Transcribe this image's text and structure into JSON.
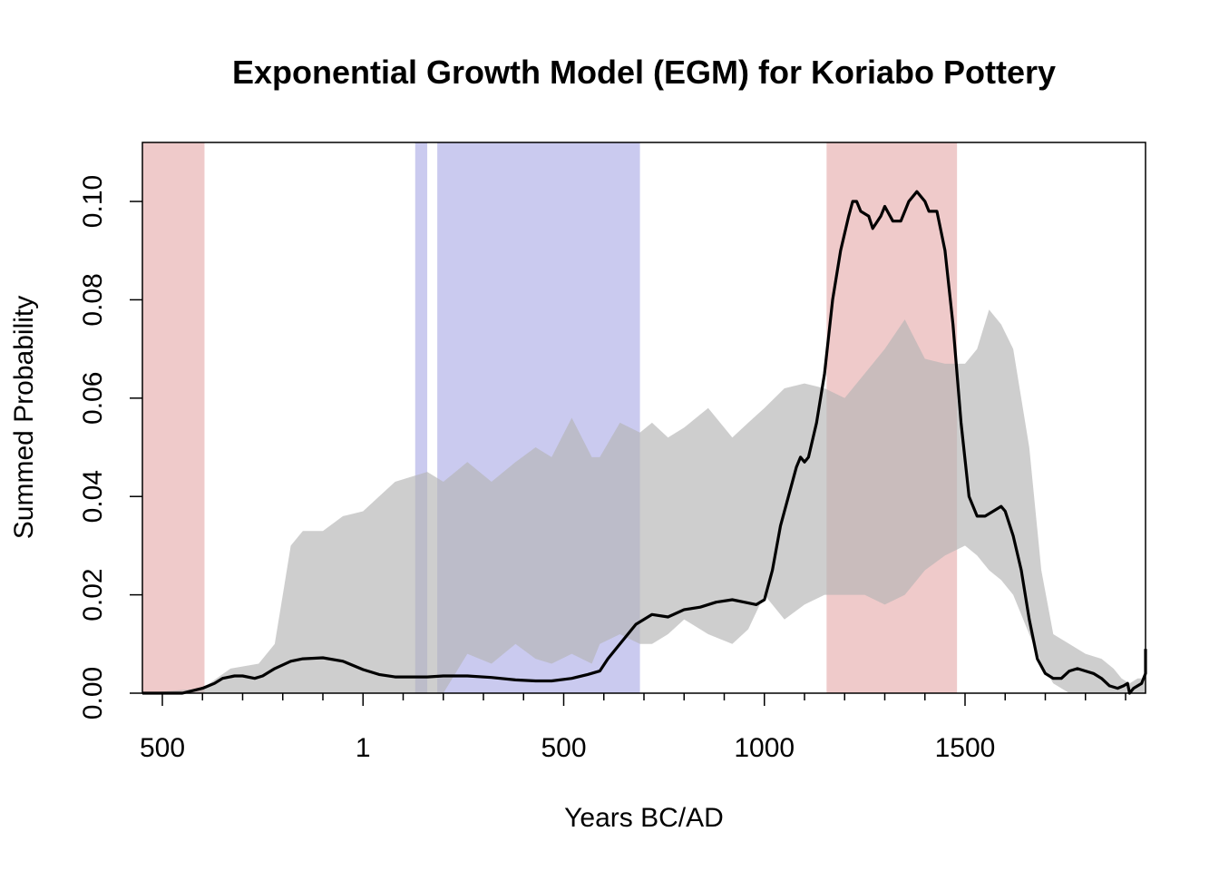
{
  "chart_data": {
    "type": "area",
    "title": "Exponential Growth Model (EGM) for Koriabo Pottery",
    "xlabel": "Years BC/AD",
    "ylabel": "Summed Probability",
    "xlim": [
      -1050,
      2000
    ],
    "ylim": [
      0,
      0.112
    ],
    "x_ticks": [
      {
        "value": -500,
        "label": "500"
      },
      {
        "value": 1,
        "label": "1"
      },
      {
        "value": 500,
        "label": "500"
      },
      {
        "value": 1000,
        "label": "1000"
      },
      {
        "value": 1500,
        "label": "1500"
      }
    ],
    "y_ticks": [
      {
        "value": 0.0,
        "label": "0.00"
      },
      {
        "value": 0.02,
        "label": "0.02"
      },
      {
        "value": 0.04,
        "label": "0.04"
      },
      {
        "value": 0.06,
        "label": "0.06"
      },
      {
        "value": 0.08,
        "label": "0.08"
      },
      {
        "value": 0.1,
        "label": "0.10"
      }
    ],
    "colors": {
      "envelope": "#b3b3b3",
      "spd_line": "#000000",
      "negative_deviation": "#e8b4b4",
      "positive_deviation": "#b4b4e8"
    },
    "shaded_regions": [
      {
        "type": "negative",
        "x0": -1050,
        "x1": -395
      },
      {
        "type": "positive",
        "x0": 130,
        "x1": 160
      },
      {
        "type": "positive",
        "x0": 185,
        "x1": 690
      },
      {
        "type": "negative",
        "x0": 1155,
        "x1": 1480
      }
    ],
    "envelope": {
      "x": [
        -1050,
        -400,
        -330,
        -260,
        -220,
        -200,
        -180,
        -150,
        -100,
        -50,
        0,
        40,
        80,
        120,
        160,
        200,
        260,
        320,
        380,
        430,
        470,
        520,
        570,
        590,
        640,
        690,
        720,
        760,
        800,
        860,
        920,
        960,
        1000,
        1050,
        1100,
        1150,
        1200,
        1250,
        1300,
        1350,
        1400,
        1450,
        1500,
        1530,
        1560,
        1590,
        1620,
        1660,
        1690,
        1720,
        1760,
        1800,
        1840,
        1870,
        1890,
        1910,
        1930,
        1950,
        1980,
        2000
      ],
      "upper": [
        0.0,
        0.001,
        0.005,
        0.006,
        0.01,
        0.02,
        0.03,
        0.033,
        0.033,
        0.036,
        0.037,
        0.04,
        0.043,
        0.044,
        0.045,
        0.043,
        0.047,
        0.043,
        0.047,
        0.05,
        0.048,
        0.056,
        0.048,
        0.048,
        0.055,
        0.053,
        0.055,
        0.052,
        0.054,
        0.058,
        0.052,
        0.055,
        0.058,
        0.062,
        0.063,
        0.062,
        0.06,
        0.065,
        0.07,
        0.076,
        0.068,
        0.067,
        0.067,
        0.07,
        0.078,
        0.075,
        0.07,
        0.05,
        0.025,
        0.012,
        0.01,
        0.008,
        0.007,
        0.005,
        0.003,
        0.002,
        0.003,
        0.003,
        0.006,
        0.013
      ],
      "lower": [
        0.0,
        0.0,
        0.0,
        0.0,
        0.0,
        0.0,
        0.0,
        0.0,
        0.0,
        0.0,
        0.0,
        0.0,
        0.0,
        0.0,
        0.0,
        0.0,
        0.008,
        0.006,
        0.01,
        0.007,
        0.006,
        0.008,
        0.006,
        0.01,
        0.012,
        0.01,
        0.01,
        0.012,
        0.015,
        0.012,
        0.01,
        0.013,
        0.02,
        0.015,
        0.018,
        0.02,
        0.02,
        0.02,
        0.018,
        0.02,
        0.025,
        0.028,
        0.03,
        0.028,
        0.025,
        0.023,
        0.02,
        0.012,
        0.006,
        0.002,
        0.0,
        0.0,
        0.0,
        0.0,
        0.0,
        0.0,
        0.0,
        0.0,
        0.0,
        0.0
      ]
    },
    "spd": {
      "x": [
        -1050,
        -450,
        -400,
        -370,
        -350,
        -320,
        -300,
        -270,
        -250,
        -220,
        -180,
        -150,
        -100,
        -50,
        0,
        40,
        80,
        120,
        160,
        200,
        260,
        320,
        380,
        430,
        470,
        520,
        560,
        590,
        610,
        640,
        680,
        720,
        760,
        800,
        840,
        880,
        920,
        950,
        980,
        1000,
        1020,
        1040,
        1060,
        1080,
        1090,
        1100,
        1110,
        1130,
        1150,
        1170,
        1190,
        1210,
        1220,
        1230,
        1240,
        1260,
        1270,
        1290,
        1300,
        1320,
        1340,
        1360,
        1380,
        1400,
        1410,
        1430,
        1450,
        1470,
        1490,
        1510,
        1530,
        1550,
        1570,
        1590,
        1600,
        1620,
        1640,
        1660,
        1680,
        1700,
        1720,
        1740,
        1760,
        1780,
        1800,
        1820,
        1840,
        1860,
        1880,
        1895,
        1905,
        1910,
        1920,
        1940,
        1960,
        1980,
        2000
      ],
      "y": [
        0.0,
        0.0,
        0.001,
        0.002,
        0.003,
        0.0035,
        0.0035,
        0.003,
        0.0035,
        0.005,
        0.0065,
        0.007,
        0.0072,
        0.0065,
        0.0048,
        0.0038,
        0.0033,
        0.0033,
        0.0033,
        0.0035,
        0.0035,
        0.0032,
        0.0027,
        0.0025,
        0.0025,
        0.003,
        0.0038,
        0.0045,
        0.007,
        0.01,
        0.014,
        0.016,
        0.0155,
        0.017,
        0.0175,
        0.0185,
        0.019,
        0.0185,
        0.018,
        0.019,
        0.025,
        0.034,
        0.04,
        0.046,
        0.048,
        0.047,
        0.048,
        0.055,
        0.065,
        0.08,
        0.09,
        0.097,
        0.1,
        0.1,
        0.098,
        0.097,
        0.0945,
        0.097,
        0.099,
        0.096,
        0.096,
        0.1,
        0.102,
        0.1,
        0.098,
        0.098,
        0.09,
        0.075,
        0.055,
        0.04,
        0.036,
        0.036,
        0.037,
        0.038,
        0.037,
        0.032,
        0.025,
        0.015,
        0.007,
        0.004,
        0.003,
        0.003,
        0.0045,
        0.005,
        0.0045,
        0.004,
        0.003,
        0.0015,
        0.001,
        0.0015,
        0.002,
        0.0,
        0.001,
        0.002,
        0.004,
        0.006,
        0.009
      ]
    }
  }
}
